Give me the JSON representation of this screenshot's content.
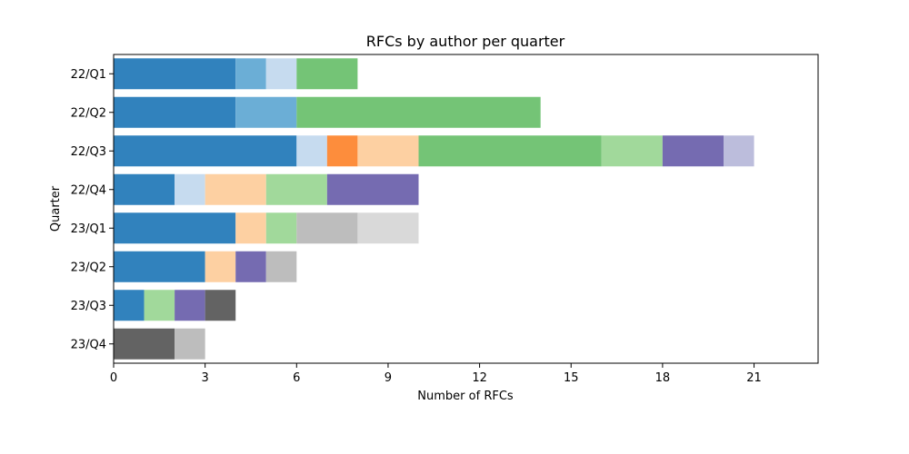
{
  "chart_data": {
    "type": "bar",
    "orientation": "horizontal",
    "stacked": true,
    "title": "RFCs by author per quarter",
    "xlabel": "Number of RFCs",
    "ylabel": "Quarter",
    "xlim": [
      0,
      23.1
    ],
    "xticks": [
      0,
      3,
      6,
      9,
      12,
      15,
      18,
      21
    ],
    "grid": false,
    "categories": [
      "22/Q1",
      "22/Q2",
      "22/Q3",
      "22/Q4",
      "23/Q1",
      "23/Q2",
      "23/Q3",
      "23/Q4"
    ],
    "series": [
      {
        "color": "#3182bd",
        "values": [
          4,
          4,
          6,
          2,
          4,
          3,
          1,
          0
        ]
      },
      {
        "color": "#6baed6",
        "values": [
          1,
          2,
          0,
          0,
          0,
          0,
          0,
          0
        ]
      },
      {
        "color": "#c6dbef",
        "values": [
          1,
          0,
          1,
          1,
          0,
          0,
          0,
          0
        ]
      },
      {
        "color": "#fd8d3c",
        "values": [
          0,
          0,
          1,
          0,
          0,
          0,
          0,
          0
        ]
      },
      {
        "color": "#fdd0a2",
        "values": [
          0,
          0,
          2,
          2,
          1,
          1,
          0,
          0
        ]
      },
      {
        "color": "#74c476",
        "values": [
          2,
          8,
          6,
          0,
          0,
          0,
          0,
          0
        ]
      },
      {
        "color": "#a1d99b",
        "values": [
          0,
          0,
          2,
          2,
          1,
          0,
          1,
          0
        ]
      },
      {
        "color": "#756bb1",
        "values": [
          0,
          0,
          2,
          3,
          0,
          1,
          1,
          0
        ]
      },
      {
        "color": "#bcbddc",
        "values": [
          0,
          0,
          1,
          0,
          0,
          0,
          0,
          0
        ]
      },
      {
        "color": "#636363",
        "values": [
          0,
          0,
          0,
          0,
          0,
          0,
          1,
          2
        ]
      },
      {
        "color": "#bdbdbd",
        "values": [
          0,
          0,
          0,
          0,
          2,
          1,
          0,
          1
        ]
      },
      {
        "color": "#d9d9d9",
        "values": [
          0,
          0,
          0,
          0,
          2,
          0,
          0,
          0
        ]
      }
    ]
  }
}
